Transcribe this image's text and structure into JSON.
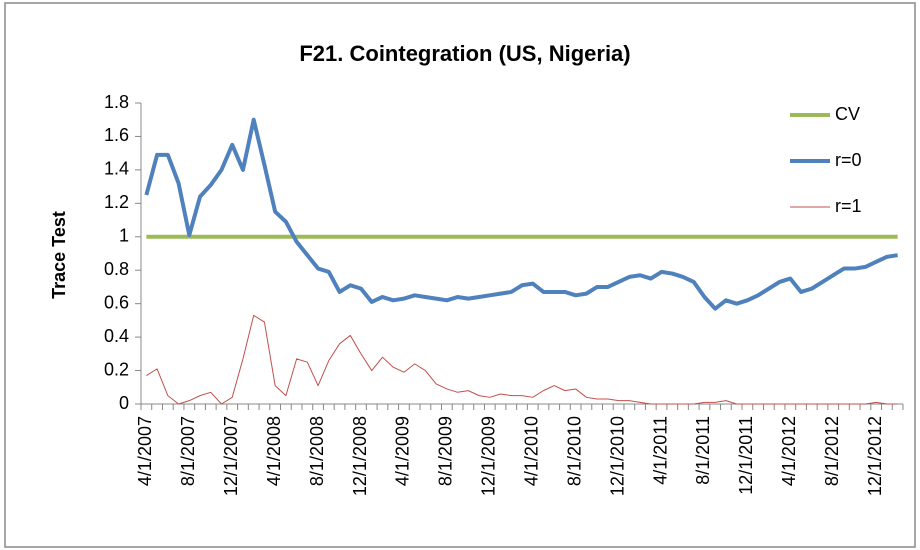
{
  "chart_data": {
    "type": "line",
    "title": "F21. Cointegration (US, Nigeria)",
    "y_label": "Trace Test",
    "categories": [
      "4/1/2007",
      null,
      null,
      null,
      "8/1/2007",
      null,
      null,
      null,
      "12/1/2007",
      null,
      null,
      null,
      "4/1/2008",
      null,
      null,
      null,
      "8/1/2008",
      null,
      null,
      null,
      "12/1/2008",
      null,
      null,
      null,
      "4/1/2009",
      null,
      null,
      null,
      "8/1/2009",
      null,
      null,
      null,
      "12/1/2009",
      null,
      null,
      null,
      "4/1/2010",
      null,
      null,
      null,
      "8/1/2010",
      null,
      null,
      null,
      "12/1/2010",
      null,
      null,
      null,
      "4/1/2011",
      null,
      null,
      null,
      "8/1/2011",
      null,
      null,
      null,
      "12/1/2011",
      null,
      null,
      null,
      "4/1/2012",
      null,
      null,
      null,
      "8/1/2012",
      null,
      null,
      null,
      "12/1/2012",
      null,
      null
    ],
    "series": [
      {
        "name": "CV",
        "color": "#9bbb59",
        "width": 4,
        "values": [
          1,
          1,
          1,
          1,
          1,
          1,
          1,
          1,
          1,
          1,
          1,
          1,
          1,
          1,
          1,
          1,
          1,
          1,
          1,
          1,
          1,
          1,
          1,
          1,
          1,
          1,
          1,
          1,
          1,
          1,
          1,
          1,
          1,
          1,
          1,
          1,
          1,
          1,
          1,
          1,
          1,
          1,
          1,
          1,
          1,
          1,
          1,
          1,
          1,
          1,
          1,
          1,
          1,
          1,
          1,
          1,
          1,
          1,
          1,
          1,
          1,
          1,
          1,
          1,
          1,
          1,
          1,
          1,
          1,
          1,
          1
        ]
      },
      {
        "name": "r=0",
        "color": "#4f81bd",
        "width": 4,
        "values": [
          1.25,
          1.49,
          1.49,
          1.32,
          1.01,
          1.24,
          1.31,
          1.4,
          1.55,
          1.4,
          1.7,
          1.43,
          1.15,
          1.09,
          0.97,
          0.89,
          0.81,
          0.79,
          0.67,
          0.71,
          0.69,
          0.61,
          0.64,
          0.62,
          0.63,
          0.65,
          0.64,
          0.63,
          0.62,
          0.64,
          0.63,
          0.64,
          0.65,
          0.66,
          0.67,
          0.71,
          0.72,
          0.67,
          0.67,
          0.67,
          0.65,
          0.66,
          0.7,
          0.7,
          0.73,
          0.76,
          0.77,
          0.75,
          0.79,
          0.78,
          0.76,
          0.73,
          0.64,
          0.57,
          0.62,
          0.6,
          0.62,
          0.65,
          0.69,
          0.73,
          0.75,
          0.67,
          0.69,
          0.73,
          0.77,
          0.81,
          0.81,
          0.82,
          0.85,
          0.88,
          0.89
        ]
      },
      {
        "name": "r=1",
        "color": "#c0504d",
        "width": 1,
        "values": [
          0.17,
          0.21,
          0.05,
          0,
          0.02,
          0.05,
          0.07,
          0,
          0.04,
          0.27,
          0.53,
          0.49,
          0.11,
          0.05,
          0.27,
          0.25,
          0.11,
          0.26,
          0.36,
          0.41,
          0.3,
          0.2,
          0.28,
          0.22,
          0.19,
          0.24,
          0.2,
          0.12,
          0.09,
          0.07,
          0.08,
          0.05,
          0.04,
          0.06,
          0.05,
          0.05,
          0.04,
          0.08,
          0.11,
          0.08,
          0.09,
          0.04,
          0.03,
          0.03,
          0.02,
          0.02,
          0.01,
          0,
          0,
          0,
          0,
          0,
          0.01,
          0.01,
          0.02,
          0,
          0,
          0,
          0,
          0,
          0,
          0,
          0,
          0,
          0,
          0,
          0,
          0,
          0.01,
          0,
          0
        ]
      }
    ],
    "ylim": [
      0,
      1.8
    ],
    "yticks": [
      0,
      0.2,
      0.4,
      0.6,
      0.8,
      1,
      1.2,
      1.4,
      1.6,
      1.8
    ],
    "grid": false,
    "legend": "right"
  }
}
